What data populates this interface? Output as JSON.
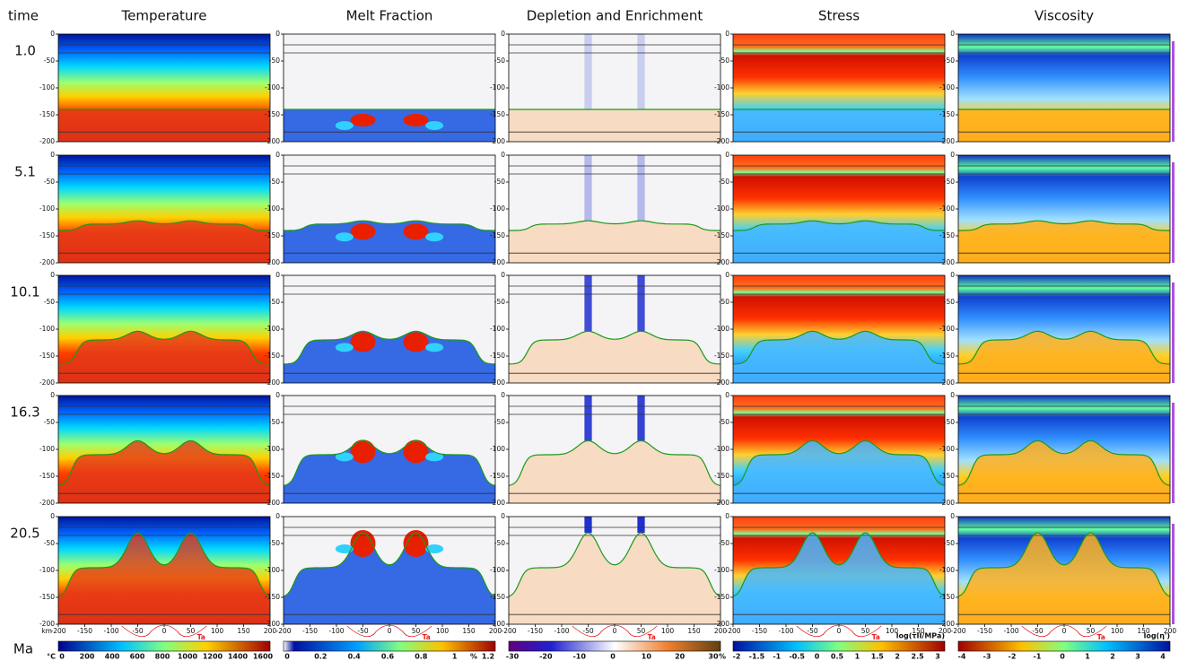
{
  "header": {
    "corner": "time",
    "columns": [
      "Temperature",
      "Melt Fraction",
      "Depletion and Enrichment",
      "Stress",
      "Viscosity"
    ]
  },
  "times": [
    "1.0",
    "5.1",
    "10.1",
    "16.3",
    "20.5"
  ],
  "time_unit": "Ma",
  "y_ticks": [
    0,
    -50,
    -100,
    -150,
    -200
  ],
  "x_ticks": [
    -200,
    -150,
    -100,
    -50,
    0,
    50,
    100,
    150,
    200
  ],
  "x_unit": "km",
  "adiabat_label": "Ta",
  "colorbars": [
    {
      "label": "°C",
      "ticks": [
        0,
        200,
        400,
        600,
        800,
        1000,
        1200,
        1400,
        1600
      ]
    },
    {
      "label": "%",
      "ticks": [
        0,
        0.2,
        0.4,
        0.6,
        0.8,
        1,
        1.2
      ]
    },
    {
      "label": "%",
      "ticks": [
        -30,
        -20,
        -10,
        0,
        10,
        20,
        30
      ]
    },
    {
      "label": "log(τII/MPa)",
      "ticks": [
        -2,
        -1.5,
        -1,
        -0.5,
        0,
        0.5,
        1,
        1.5,
        2,
        2.5,
        3
      ]
    },
    {
      "label": "log(η')",
      "ticks": [
        -4,
        -3,
        -2,
        -1,
        0,
        1,
        2,
        3,
        4
      ]
    }
  ]
}
